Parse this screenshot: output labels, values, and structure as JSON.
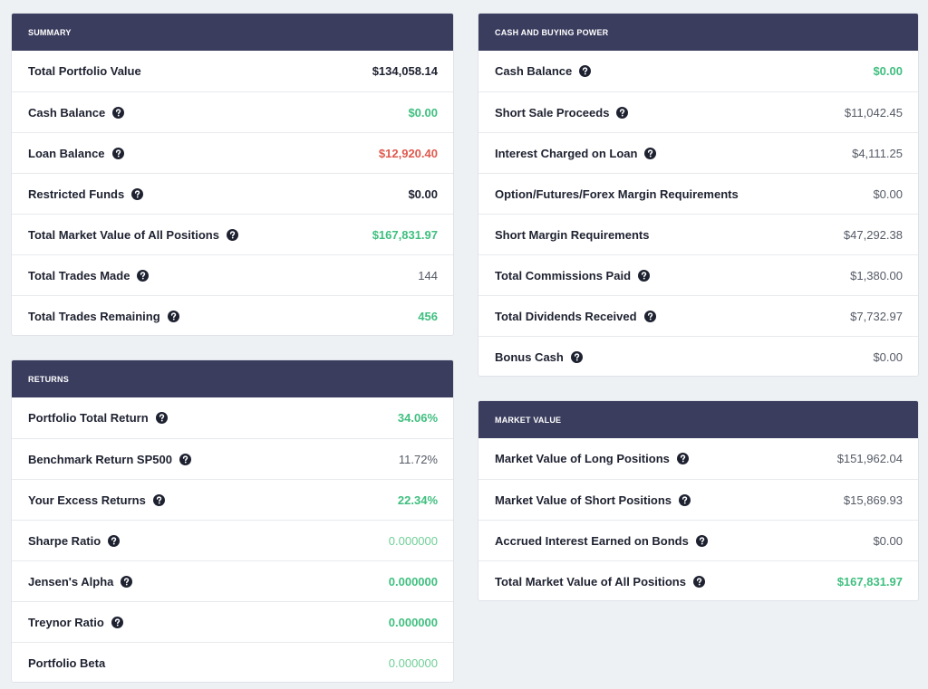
{
  "colors": {
    "header_bg": "#3b3d5f",
    "page_bg": "#eef1f4",
    "positive": "#3fbf7f",
    "negative": "#e05a4e",
    "neutral": "#555a66",
    "muted_positive": "#6fcf97"
  },
  "summary": {
    "title": "SUMMARY",
    "rows": [
      {
        "label": "Total Portfolio Value",
        "value": "$134,058.14",
        "help": false,
        "style": "dark"
      },
      {
        "label": "Cash Balance",
        "value": "$0.00",
        "help": true,
        "style": "green"
      },
      {
        "label": "Loan Balance",
        "value": "$12,920.40",
        "help": true,
        "style": "red"
      },
      {
        "label": "Restricted Funds",
        "value": "$0.00",
        "help": true,
        "style": "dark"
      },
      {
        "label": "Total Market Value of All Positions",
        "value": "$167,831.97",
        "help": true,
        "style": "green"
      },
      {
        "label": "Total Trades Made",
        "value": "144",
        "help": true,
        "style": "gray"
      },
      {
        "label": "Total Trades Remaining",
        "value": "456",
        "help": true,
        "style": "green"
      }
    ]
  },
  "returns": {
    "title": "RETURNS",
    "rows": [
      {
        "label": "Portfolio Total Return",
        "value": "34.06%",
        "help": true,
        "style": "green"
      },
      {
        "label": "Benchmark Return SP500",
        "value": "11.72%",
        "help": true,
        "style": "gray"
      },
      {
        "label": "Your Excess Returns",
        "value": "22.34%",
        "help": true,
        "style": "green"
      },
      {
        "label": "Sharpe Ratio",
        "value": "0.000000",
        "help": true,
        "style": "lightgreen"
      },
      {
        "label": "Jensen's Alpha",
        "value": "0.000000",
        "help": true,
        "style": "green"
      },
      {
        "label": "Treynor Ratio",
        "value": "0.000000",
        "help": true,
        "style": "green"
      },
      {
        "label": "Portfolio Beta",
        "value": "0.000000",
        "help": false,
        "style": "lightgreen"
      }
    ]
  },
  "cash_buying_power": {
    "title": "CASH AND BUYING POWER",
    "rows": [
      {
        "label": "Cash Balance",
        "value": "$0.00",
        "help": true,
        "style": "green"
      },
      {
        "label": "Short Sale Proceeds",
        "value": "$11,042.45",
        "help": true,
        "style": "gray"
      },
      {
        "label": "Interest Charged on Loan",
        "value": "$4,111.25",
        "help": true,
        "style": "gray"
      },
      {
        "label": "Option/Futures/Forex Margin Requirements",
        "value": "$0.00",
        "help": false,
        "style": "gray"
      },
      {
        "label": "Short Margin Requirements",
        "value": "$47,292.38",
        "help": false,
        "style": "gray"
      },
      {
        "label": "Total Commissions Paid",
        "value": "$1,380.00",
        "help": true,
        "style": "gray"
      },
      {
        "label": "Total Dividends Received",
        "value": "$7,732.97",
        "help": true,
        "style": "gray"
      },
      {
        "label": "Bonus Cash",
        "value": "$0.00",
        "help": true,
        "style": "gray"
      }
    ]
  },
  "market_value": {
    "title": "MARKET VALUE",
    "rows": [
      {
        "label": "Market Value of Long Positions",
        "value": "$151,962.04",
        "help": true,
        "style": "gray"
      },
      {
        "label": "Market Value of Short Positions",
        "value": "$15,869.93",
        "help": true,
        "style": "gray"
      },
      {
        "label": "Accrued Interest Earned on Bonds",
        "value": "$0.00",
        "help": true,
        "style": "gray"
      },
      {
        "label": "Total Market Value of All Positions",
        "value": "$167,831.97",
        "help": true,
        "style": "green"
      }
    ]
  }
}
